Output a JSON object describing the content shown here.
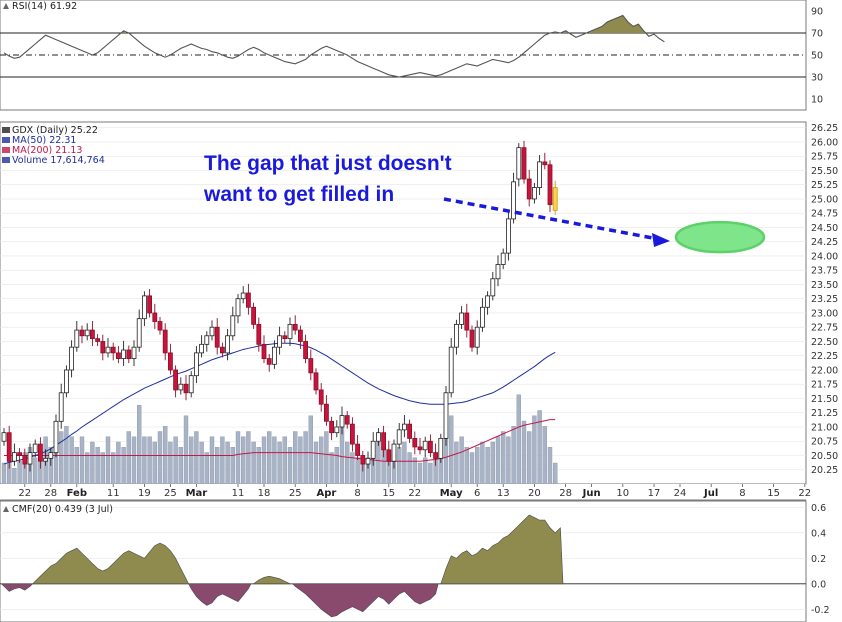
{
  "chart_data": {
    "type": "candlestick",
    "annotation": {
      "lines": [
        "The gap that just doesn't",
        "want to get filled in"
      ],
      "color": "#1a1adc"
    },
    "rsi": {
      "legend": "RSI(14) 61.92",
      "ticks": [
        10,
        30,
        50,
        70,
        90
      ],
      "bands": [
        30,
        50,
        70
      ],
      "ylim": [
        0,
        100
      ],
      "values": [
        52,
        49,
        47,
        48,
        52,
        56,
        60,
        64,
        68,
        66,
        64,
        62,
        60,
        58,
        56,
        54,
        52,
        50,
        52,
        56,
        60,
        64,
        68,
        72,
        70,
        66,
        62,
        58,
        55,
        52,
        50,
        48,
        50,
        53,
        56,
        58,
        60,
        58,
        56,
        55,
        53,
        52,
        50,
        48,
        47,
        49,
        52,
        55,
        57,
        55,
        52,
        50,
        48,
        46,
        44,
        43,
        42,
        44,
        46,
        50,
        53,
        56,
        58,
        56,
        54,
        52,
        50,
        47,
        44,
        42,
        40,
        38,
        36,
        34,
        32,
        31,
        30,
        31,
        32,
        33,
        34,
        33,
        32,
        31,
        32,
        34,
        36,
        38,
        40,
        42,
        41,
        40,
        42,
        44,
        46,
        45,
        44,
        43,
        45,
        48,
        52,
        56,
        60,
        64,
        68,
        70,
        71,
        70,
        72,
        69,
        66,
        68,
        70,
        72,
        74,
        76,
        80,
        82,
        84,
        86,
        80,
        76,
        78,
        72,
        67,
        69,
        65,
        62
      ],
      "color": "#555555",
      "fill": "#8f8a4e"
    },
    "price": {
      "legend": [
        {
          "label": "GDX (Daily) 25.22",
          "color": "#222222",
          "icon": "candle-icon"
        },
        {
          "label": "MA(50) 22.31",
          "color": "#1f2fa0",
          "icon": "line-swatch-icon"
        },
        {
          "label": "MA(200) 21.13",
          "color": "#c0184a",
          "icon": "line-swatch-icon"
        },
        {
          "label": "Volume 17,614,764",
          "color": "#1f2fa0",
          "icon": "bars-icon"
        }
      ],
      "ticks": [
        20.25,
        20.5,
        20.75,
        21,
        21.25,
        21.5,
        21.75,
        22,
        22.25,
        22.5,
        22.75,
        23,
        23.25,
        23.5,
        23.75,
        24,
        24.25,
        24.5,
        24.75,
        25,
        25.25,
        25.5,
        25.75,
        26,
        26.25
      ],
      "ylim": [
        20.0,
        26.35
      ],
      "closes": [
        20.9,
        20.4,
        20.55,
        20.5,
        20.35,
        20.55,
        20.7,
        20.4,
        20.45,
        20.55,
        21.1,
        21.6,
        22.0,
        22.4,
        22.7,
        22.6,
        22.7,
        22.55,
        22.5,
        22.3,
        22.4,
        22.3,
        22.2,
        22.35,
        22.2,
        22.4,
        22.9,
        23.3,
        23.0,
        22.85,
        22.7,
        22.3,
        22.0,
        21.65,
        21.75,
        21.6,
        21.9,
        22.3,
        22.45,
        22.6,
        22.75,
        22.4,
        22.3,
        22.6,
        22.95,
        23.25,
        23.35,
        23.1,
        22.8,
        22.45,
        22.2,
        22.1,
        22.4,
        22.6,
        22.55,
        22.8,
        22.7,
        22.5,
        22.2,
        21.95,
        21.65,
        21.4,
        21.1,
        20.9,
        21.0,
        21.2,
        21.05,
        20.7,
        20.5,
        20.35,
        20.45,
        20.75,
        20.9,
        20.6,
        20.4,
        20.7,
        20.95,
        21.05,
        20.8,
        20.65,
        20.6,
        20.75,
        20.55,
        20.45,
        20.8,
        21.6,
        22.4,
        22.8,
        23.0,
        22.7,
        22.4,
        22.75,
        23.1,
        23.3,
        23.6,
        23.85,
        24.05,
        24.65,
        25.3,
        25.9,
        25.35,
        25.0,
        25.2,
        25.65,
        25.6,
        24.9,
        25.2
      ],
      "ma50": [
        20.35,
        20.38,
        20.4,
        20.42,
        20.44,
        20.47,
        20.5,
        20.53,
        20.57,
        20.62,
        20.68,
        20.74,
        20.8,
        20.87,
        20.93,
        21.0,
        21.06,
        21.12,
        21.18,
        21.24,
        21.3,
        21.36,
        21.42,
        21.48,
        21.53,
        21.58,
        21.63,
        21.68,
        21.72,
        21.76,
        21.8,
        21.84,
        21.88,
        21.92,
        21.95,
        21.98,
        22.02,
        22.06,
        22.1,
        22.14,
        22.18,
        22.21,
        22.24,
        22.27,
        22.3,
        22.33,
        22.36,
        22.38,
        22.4,
        22.42,
        22.44,
        22.45,
        22.46,
        22.47,
        22.47,
        22.47,
        22.46,
        22.44,
        22.42,
        22.39,
        22.35,
        22.3,
        22.25,
        22.19,
        22.13,
        22.07,
        22.01,
        21.95,
        21.89,
        21.83,
        21.77,
        21.72,
        21.67,
        21.63,
        21.59,
        21.55,
        21.52,
        21.49,
        21.46,
        21.44,
        21.42,
        21.41,
        21.4,
        21.4,
        21.4,
        21.4,
        21.41,
        21.42,
        21.43,
        21.45,
        21.48,
        21.51,
        21.54,
        21.57,
        21.6,
        21.65,
        21.7,
        21.76,
        21.82,
        21.88,
        21.94,
        22.0,
        22.06,
        22.13,
        22.2,
        22.26,
        22.31
      ],
      "ma200": [
        20.5,
        20.5,
        20.5,
        20.5,
        20.5,
        20.5,
        20.5,
        20.5,
        20.5,
        20.5,
        20.5,
        20.5,
        20.5,
        20.5,
        20.5,
        20.5,
        20.5,
        20.5,
        20.5,
        20.5,
        20.5,
        20.5,
        20.5,
        20.5,
        20.5,
        20.5,
        20.5,
        20.5,
        20.5,
        20.5,
        20.5,
        20.5,
        20.5,
        20.5,
        20.5,
        20.5,
        20.5,
        20.5,
        20.5,
        20.5,
        20.5,
        20.5,
        20.5,
        20.5,
        20.5,
        20.52,
        20.53,
        20.54,
        20.55,
        20.55,
        20.55,
        20.55,
        20.55,
        20.55,
        20.55,
        20.55,
        20.55,
        20.55,
        20.55,
        20.55,
        20.54,
        20.53,
        20.52,
        20.51,
        20.5,
        20.48,
        20.47,
        20.46,
        20.45,
        20.44,
        20.43,
        20.42,
        20.41,
        20.4,
        20.4,
        20.4,
        20.4,
        20.4,
        20.4,
        20.4,
        20.4,
        20.41,
        20.42,
        20.43,
        20.45,
        20.47,
        20.5,
        20.53,
        20.56,
        20.6,
        20.64,
        20.68,
        20.72,
        20.76,
        20.8,
        20.84,
        20.88,
        20.92,
        20.96,
        21.0,
        21.03,
        21.05,
        21.07,
        21.09,
        21.11,
        21.13,
        21.13
      ],
      "volume": [
        0.2,
        0.25,
        0.15,
        0.22,
        0.3,
        0.35,
        0.25,
        0.3,
        0.45,
        0.35,
        0.4,
        0.5,
        0.55,
        0.45,
        0.35,
        0.45,
        0.3,
        0.4,
        0.35,
        0.3,
        0.45,
        0.3,
        0.4,
        0.35,
        0.5,
        0.45,
        0.75,
        0.45,
        0.45,
        0.4,
        0.5,
        0.55,
        0.4,
        0.45,
        0.35,
        0.65,
        0.45,
        0.5,
        0.4,
        0.3,
        0.45,
        0.35,
        0.45,
        0.4,
        0.35,
        0.5,
        0.45,
        0.5,
        0.4,
        0.35,
        0.45,
        0.5,
        0.45,
        0.4,
        0.45,
        0.35,
        0.5,
        0.45,
        0.5,
        0.65,
        0.4,
        0.45,
        0.5,
        0.3,
        0.35,
        0.55,
        0.4,
        0.3,
        0.25,
        0.2,
        0.25,
        0.3,
        0.4,
        0.35,
        0.3,
        0.3,
        0.35,
        0.4,
        0.3,
        0.25,
        0.2,
        0.25,
        0.2,
        0.3,
        0.35,
        0.6,
        0.65,
        0.4,
        0.45,
        0.35,
        0.3,
        0.35,
        0.4,
        0.35,
        0.4,
        0.45,
        0.5,
        0.45,
        0.55,
        0.85,
        0.6,
        0.5,
        0.65,
        0.7,
        0.55,
        0.35,
        0.2
      ],
      "gap_zone": {
        "center": 24.33,
        "color": "#7fe58a",
        "edge": "#5ed06a"
      }
    },
    "cmf": {
      "legend": "CMF(20) 0.439 (3 Jul)",
      "ticks": [
        -0.2,
        0.0,
        0.2,
        0.4,
        0.6
      ],
      "ylim": [
        -0.3,
        0.65
      ],
      "values": [
        -0.02,
        -0.06,
        -0.04,
        -0.03,
        -0.05,
        -0.02,
        0.02,
        0.06,
        0.1,
        0.14,
        0.16,
        0.2,
        0.24,
        0.26,
        0.28,
        0.24,
        0.2,
        0.16,
        0.12,
        0.1,
        0.12,
        0.16,
        0.2,
        0.24,
        0.26,
        0.24,
        0.22,
        0.2,
        0.25,
        0.3,
        0.32,
        0.3,
        0.26,
        0.2,
        0.12,
        0.04,
        -0.04,
        -0.1,
        -0.14,
        -0.17,
        -0.15,
        -0.1,
        -0.08,
        -0.1,
        -0.12,
        -0.14,
        -0.09,
        -0.04,
        0.0,
        0.03,
        0.05,
        0.06,
        0.05,
        0.04,
        0.02,
        0.0,
        -0.02,
        -0.05,
        -0.08,
        -0.12,
        -0.16,
        -0.2,
        -0.23,
        -0.26,
        -0.25,
        -0.22,
        -0.2,
        -0.18,
        -0.2,
        -0.22,
        -0.18,
        -0.14,
        -0.1,
        -0.12,
        -0.16,
        -0.12,
        -0.08,
        -0.06,
        -0.1,
        -0.14,
        -0.16,
        -0.14,
        -0.12,
        -0.08,
        0.0,
        0.12,
        0.22,
        0.2,
        0.24,
        0.26,
        0.22,
        0.24,
        0.28,
        0.26,
        0.3,
        0.32,
        0.36,
        0.38,
        0.42,
        0.46,
        0.5,
        0.54,
        0.52,
        0.5,
        0.5,
        0.44,
        0.4,
        0.44
      ],
      "pos_fill": "#8f8a4e",
      "neg_fill": "#8a4a6e"
    },
    "x_axis": {
      "labels": [
        {
          "text": "22",
          "i": 4,
          "bold": false
        },
        {
          "text": "28",
          "i": 9,
          "bold": false
        },
        {
          "text": "Feb",
          "i": 14,
          "bold": true
        },
        {
          "text": "11",
          "i": 21,
          "bold": false
        },
        {
          "text": "19",
          "i": 27,
          "bold": false
        },
        {
          "text": "25",
          "i": 32,
          "bold": false
        },
        {
          "text": "Mar",
          "i": 37,
          "bold": true
        },
        {
          "text": "11",
          "i": 45,
          "bold": false
        },
        {
          "text": "18",
          "i": 50,
          "bold": false
        },
        {
          "text": "25",
          "i": 56,
          "bold": false
        },
        {
          "text": "Apr",
          "i": 62,
          "bold": true
        },
        {
          "text": "8",
          "i": 68,
          "bold": false
        },
        {
          "text": "15",
          "i": 74,
          "bold": false
        },
        {
          "text": "22",
          "i": 79,
          "bold": false
        },
        {
          "text": "May",
          "i": 86,
          "bold": true
        },
        {
          "text": "6",
          "i": 91,
          "bold": false
        },
        {
          "text": "13",
          "i": 96,
          "bold": false
        },
        {
          "text": "20",
          "i": 102,
          "bold": false
        },
        {
          "text": "28",
          "i": 108,
          "bold": false
        },
        {
          "text": "Jun",
          "i": 113,
          "bold": true
        },
        {
          "text": "10",
          "i": 119,
          "bold": false
        },
        {
          "text": "17",
          "i": 125,
          "bold": false
        },
        {
          "text": "24",
          "i": 130,
          "bold": false
        },
        {
          "text": "Jul",
          "i": 136,
          "bold": true
        },
        {
          "text": "8",
          "i": 142,
          "bold": false
        },
        {
          "text": "15",
          "i": 148,
          "bold": false
        },
        {
          "text": "22",
          "i": 154,
          "bold": false
        }
      ]
    },
    "colors": {
      "up": "#ffffff",
      "down": "#c8143c",
      "last": "#ffd24a",
      "volume": "#a9b3c6",
      "grid": "#e6e6e6"
    }
  }
}
